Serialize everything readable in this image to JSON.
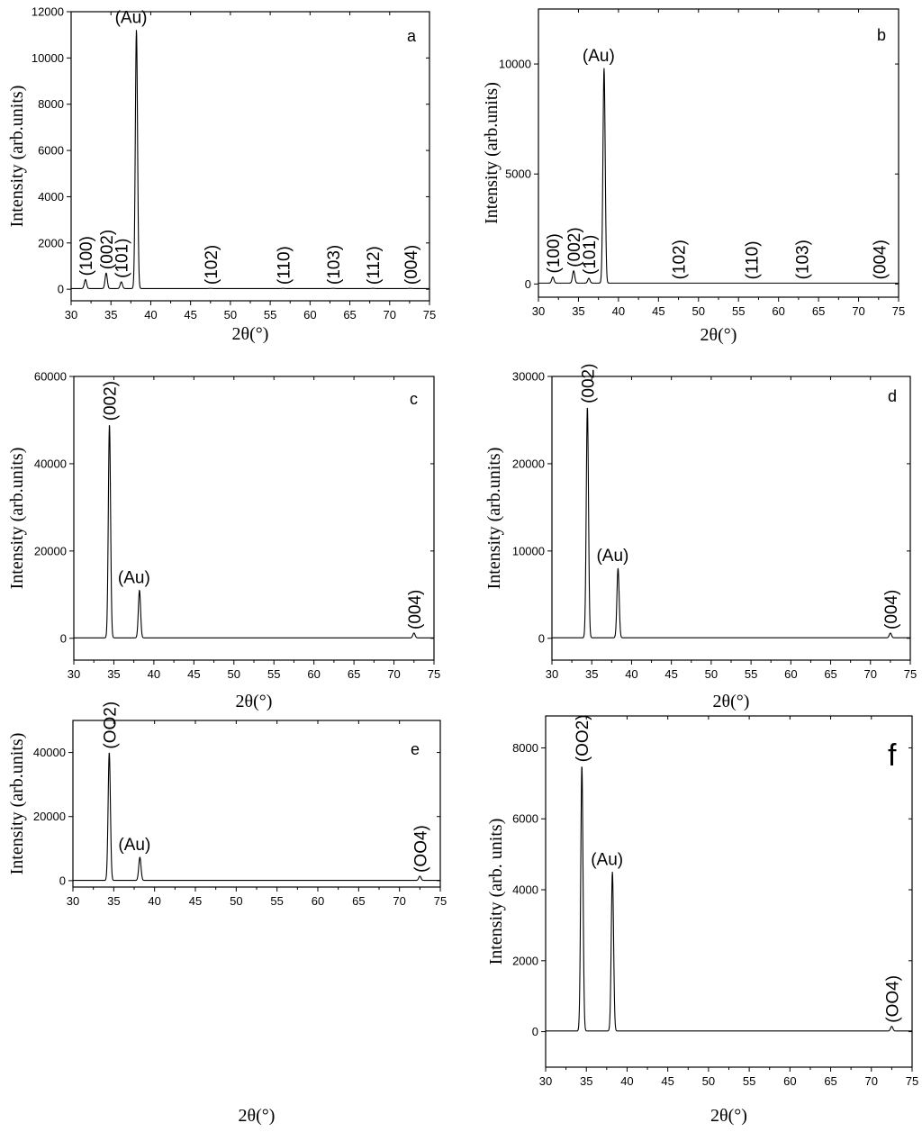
{
  "chart_data": [
    {
      "type": "line",
      "panel_label": "a",
      "xlabel": "2θ(°)",
      "ylabel": "Intensity (arb.units)",
      "xlim": [
        30,
        75
      ],
      "ylim": [
        -500,
        12000
      ],
      "x_ticks": [
        "30",
        "35",
        "40",
        "45",
        "50",
        "55",
        "60",
        "65",
        "70",
        "75"
      ],
      "y_ticks": [
        "0",
        "2000",
        "4000",
        "6000",
        "8000",
        "10000",
        "12000"
      ],
      "baseline": 30,
      "peaks": [
        {
          "x": 31.8,
          "y": 420,
          "label": "(100)",
          "orient": "v"
        },
        {
          "x": 34.4,
          "y": 700,
          "label": "(002)",
          "orient": "v"
        },
        {
          "x": 36.3,
          "y": 320,
          "label": "(101)",
          "orient": "v"
        },
        {
          "x": 38.2,
          "y": 11200,
          "label": "(Au)",
          "orient": "h"
        },
        {
          "x": 47.5,
          "y": 40,
          "label": "(102)",
          "orient": "v"
        },
        {
          "x": 56.6,
          "y": 40,
          "label": "(110)",
          "orient": "v"
        },
        {
          "x": 62.9,
          "y": 40,
          "label": "(103)",
          "orient": "v"
        },
        {
          "x": 67.9,
          "y": 40,
          "label": "(112)",
          "orient": "v"
        },
        {
          "x": 72.6,
          "y": 40,
          "label": "(004)",
          "orient": "v"
        }
      ]
    },
    {
      "type": "line",
      "panel_label": "b",
      "xlabel": "2θ(°)",
      "ylabel": "Intensity (arb.units)",
      "xlim": [
        30,
        75
      ],
      "ylim": [
        -600,
        12500
      ],
      "x_ticks": [
        "30",
        "35",
        "40",
        "45",
        "50",
        "55",
        "60",
        "65",
        "70",
        "75"
      ],
      "y_ticks": [
        "0",
        "5000",
        "10000"
      ],
      "baseline": 40,
      "peaks": [
        {
          "x": 31.8,
          "y": 320,
          "label": "(100)",
          "orient": "v"
        },
        {
          "x": 34.4,
          "y": 600,
          "label": "(002)",
          "orient": "v"
        },
        {
          "x": 36.3,
          "y": 260,
          "label": "(101)",
          "orient": "v"
        },
        {
          "x": 38.2,
          "y": 9800,
          "label": "(Au)",
          "orient": "h"
        },
        {
          "x": 47.5,
          "y": 40,
          "label": "(102)",
          "orient": "v"
        },
        {
          "x": 56.6,
          "y": 40,
          "label": "(110)",
          "orient": "v"
        },
        {
          "x": 62.9,
          "y": 40,
          "label": "(103)",
          "orient": "v"
        },
        {
          "x": 72.6,
          "y": 40,
          "label": "(004)",
          "orient": "v"
        }
      ]
    },
    {
      "type": "line",
      "panel_label": "c",
      "xlabel": "2θ(°)",
      "ylabel": "Intensity (arb.units)",
      "xlim": [
        30,
        75
      ],
      "ylim": [
        -5000,
        60000
      ],
      "x_ticks": [
        "30",
        "35",
        "40",
        "45",
        "50",
        "55",
        "60",
        "65",
        "70",
        "75"
      ],
      "y_ticks": [
        "0",
        "20000",
        "40000",
        "60000"
      ],
      "baseline": 100,
      "peaks": [
        {
          "x": 34.45,
          "y": 49000,
          "label": "(002)",
          "orient": "v"
        },
        {
          "x": 38.2,
          "y": 11000,
          "label": "(Au)",
          "orient": "h"
        },
        {
          "x": 72.5,
          "y": 1200,
          "label": "(004)",
          "orient": "v"
        }
      ]
    },
    {
      "type": "line",
      "panel_label": "d",
      "xlabel": "2θ(°)",
      "ylabel": "Intensity (arb.units)",
      "xlim": [
        30,
        75
      ],
      "ylim": [
        -2500,
        30000
      ],
      "x_ticks": [
        "30",
        "35",
        "40",
        "45",
        "50",
        "55",
        "60",
        "65",
        "70",
        "75"
      ],
      "y_ticks": [
        "0",
        "10000",
        "20000",
        "30000"
      ],
      "baseline": 60,
      "peaks": [
        {
          "x": 34.45,
          "y": 26500,
          "label": "(002)",
          "orient": "v"
        },
        {
          "x": 38.3,
          "y": 8000,
          "label": "(Au)",
          "orient": "h"
        },
        {
          "x": 72.5,
          "y": 600,
          "label": "(004)",
          "orient": "v"
        }
      ]
    },
    {
      "type": "line",
      "panel_label": "e",
      "xlabel": "2θ(°)",
      "ylabel": "Intensity (arb.units)",
      "xlim": [
        30,
        75
      ],
      "ylim": [
        -2000,
        50000
      ],
      "x_ticks": [
        "30",
        "35",
        "40",
        "45",
        "50",
        "55",
        "60",
        "65",
        "70",
        "75"
      ],
      "y_ticks": [
        "0",
        "20000",
        "40000"
      ],
      "baseline": 80,
      "peaks": [
        {
          "x": 34.45,
          "y": 40000,
          "label": "(OO2)",
          "orient": "v"
        },
        {
          "x": 38.2,
          "y": 7300,
          "label": "(Au)",
          "orient": "h"
        },
        {
          "x": 72.5,
          "y": 1400,
          "label": "(OO4)",
          "orient": "v"
        }
      ]
    },
    {
      "type": "line",
      "panel_label": "f",
      "xlabel": "2θ(°)",
      "ylabel": "Intensity (arb. units)",
      "xlim": [
        30,
        75
      ],
      "ylim": [
        -1000,
        8900
      ],
      "x_ticks": [
        "30",
        "35",
        "40",
        "45",
        "50",
        "55",
        "60",
        "65",
        "70",
        "75"
      ],
      "y_ticks": [
        "0",
        "2000",
        "4000",
        "6000",
        "8000"
      ],
      "baseline": 20,
      "peaks": [
        {
          "x": 34.45,
          "y": 7500,
          "label": "(OO2)",
          "orient": "v"
        },
        {
          "x": 38.2,
          "y": 4500,
          "label": "(Au)",
          "orient": "h"
        },
        {
          "x": 72.5,
          "y": 150,
          "label": "(OO4)",
          "orient": "v"
        }
      ]
    }
  ]
}
